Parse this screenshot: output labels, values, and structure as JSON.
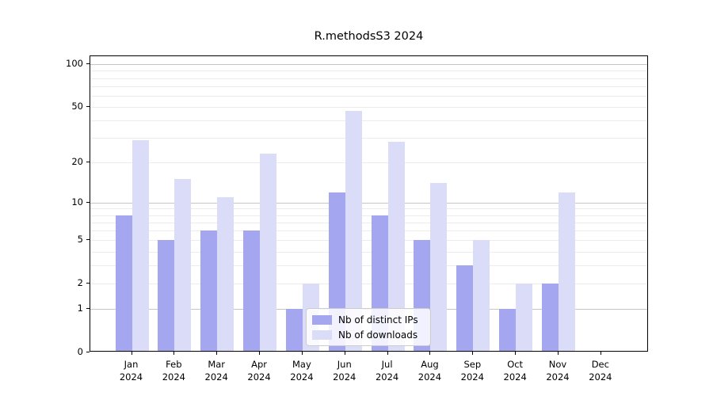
{
  "title": "R.methodsS3 2024",
  "legend": {
    "items": [
      {
        "label": "Nb of distinct IPs",
        "color": "#a4a6ef"
      },
      {
        "label": "Nb of downloads",
        "color": "#dbdcf8"
      }
    ]
  },
  "y_axis": {
    "tick_labels": [
      "0",
      "1",
      "2",
      "5",
      "10",
      "20",
      "50",
      "100"
    ],
    "tick_values": [
      0,
      1,
      2,
      5,
      10,
      20,
      50,
      100
    ]
  },
  "x_axis": {
    "months": [
      {
        "line1": "Jan",
        "line2": "2024"
      },
      {
        "line1": "Feb",
        "line2": "2024"
      },
      {
        "line1": "Mar",
        "line2": "2024"
      },
      {
        "line1": "Apr",
        "line2": "2024"
      },
      {
        "line1": "May",
        "line2": "2024"
      },
      {
        "line1": "Jun",
        "line2": "2024"
      },
      {
        "line1": "Jul",
        "line2": "2024"
      },
      {
        "line1": "Aug",
        "line2": "2024"
      },
      {
        "line1": "Sep",
        "line2": "2024"
      },
      {
        "line1": "Oct",
        "line2": "2024"
      },
      {
        "line1": "Nov",
        "line2": "2024"
      },
      {
        "line1": "Dec",
        "line2": "2024"
      }
    ]
  },
  "chart_data": {
    "type": "bar",
    "title": "R.methodsS3 2024",
    "categories": [
      "Jan 2024",
      "Feb 2024",
      "Mar 2024",
      "Apr 2024",
      "May 2024",
      "Jun 2024",
      "Jul 2024",
      "Aug 2024",
      "Sep 2024",
      "Oct 2024",
      "Nov 2024",
      "Dec 2024"
    ],
    "series": [
      {
        "name": "Nb of distinct IPs",
        "color": "#a4a6ef",
        "values": [
          8,
          5,
          6,
          6,
          1,
          12,
          8,
          5,
          3,
          1,
          2,
          0
        ]
      },
      {
        "name": "Nb of downloads",
        "color": "#dbdcf8",
        "values": [
          29,
          15,
          11,
          23,
          2,
          47,
          28,
          14,
          5,
          2,
          12,
          0
        ]
      }
    ],
    "yscale": "log1p",
    "ylim": [
      0,
      114
    ],
    "ytick_values": [
      0,
      1,
      2,
      5,
      10,
      20,
      50,
      100
    ],
    "major_gridlines": [
      1,
      10,
      100
    ],
    "minor_gridlines": [
      2,
      3,
      4,
      5,
      6,
      7,
      8,
      9,
      20,
      30,
      40,
      50,
      60,
      70,
      80,
      90
    ],
    "grid": true,
    "legend_position": "lower center"
  }
}
